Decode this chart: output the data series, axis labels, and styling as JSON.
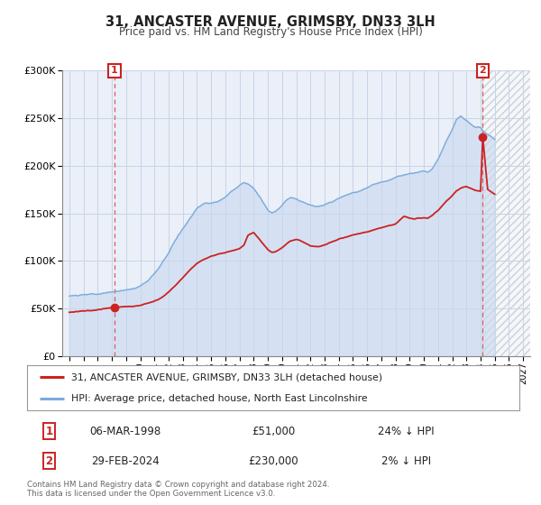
{
  "title": "31, ANCASTER AVENUE, GRIMSBY, DN33 3LH",
  "subtitle": "Price paid vs. HM Land Registry's House Price Index (HPI)",
  "legend_entry1": "31, ANCASTER AVENUE, GRIMSBY, DN33 3LH (detached house)",
  "legend_entry2": "HPI: Average price, detached house, North East Lincolnshire",
  "transaction1_date": "06-MAR-1998",
  "transaction1_price": "£51,000",
  "transaction1_hpi": "24% ↓ HPI",
  "transaction2_date": "29-FEB-2024",
  "transaction2_price": "£230,000",
  "transaction2_hpi": "2% ↓ HPI",
  "footnote1": "Contains HM Land Registry data © Crown copyright and database right 2024.",
  "footnote2": "This data is licensed under the Open Government Licence v3.0.",
  "xlim_start": 1994.5,
  "xlim_end": 2027.5,
  "ylim_min": 0,
  "ylim_max": 300000,
  "yticks": [
    0,
    50000,
    100000,
    150000,
    200000,
    250000,
    300000
  ],
  "grid_color": "#c8d4e8",
  "background_color": "#ffffff",
  "plot_bg_color": "#eaeff8",
  "hpi_color": "#7aaadd",
  "price_color": "#cc2222",
  "marker_color": "#cc2222",
  "vline_color": "#dd4444",
  "transaction1_x": 1998.18,
  "transaction1_y": 51000,
  "transaction2_x": 2024.16,
  "transaction2_y": 230000,
  "hpi_shade_color": "#c8d8ee",
  "hatch_start": 2024.16,
  "hatch_color": "#cccccc"
}
